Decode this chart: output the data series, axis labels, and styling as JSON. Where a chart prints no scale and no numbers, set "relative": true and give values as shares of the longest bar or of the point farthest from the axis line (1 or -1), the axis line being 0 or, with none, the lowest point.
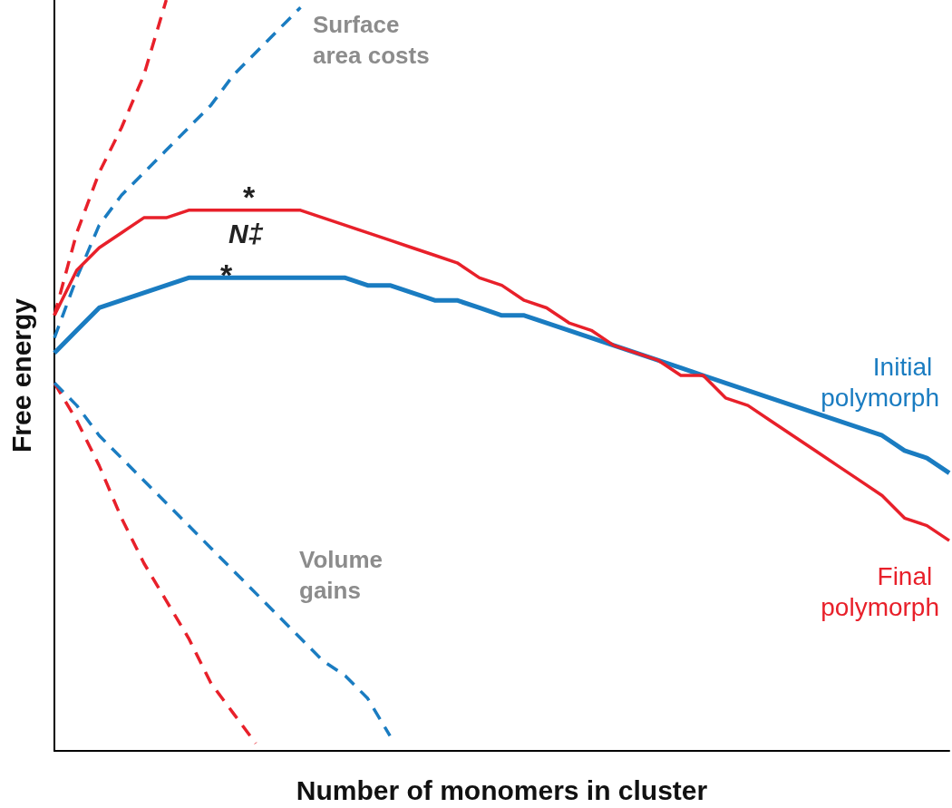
{
  "chart_data": {
    "type": "line",
    "relative": true,
    "xlabel": "Number of monomers in cluster",
    "ylabel": "Free energy",
    "categories": [
      null,
      null,
      null,
      null,
      null,
      null,
      null,
      null,
      null,
      null,
      null,
      null,
      null,
      null,
      null,
      null,
      null,
      null,
      null,
      null,
      null,
      null,
      null,
      null,
      null,
      null,
      null,
      null,
      null,
      null,
      null,
      null,
      null,
      null,
      null,
      null,
      null,
      null,
      null,
      null,
      null
    ],
    "series": [
      {
        "name": "Initial polymorph",
        "color": "#1a7cc1",
        "values": [
          0.53,
          0.56,
          0.59,
          0.6,
          0.61,
          0.62,
          0.63,
          0.63,
          0.63,
          0.63,
          0.63,
          0.63,
          0.63,
          0.63,
          0.62,
          0.62,
          0.61,
          0.6,
          0.6,
          0.59,
          0.58,
          0.58,
          0.57,
          0.56,
          0.55,
          0.54,
          0.53,
          0.52,
          0.51,
          0.5,
          0.49,
          0.48,
          0.47,
          0.46,
          0.45,
          0.44,
          0.43,
          0.42,
          0.4,
          0.39,
          0.37
        ]
      },
      {
        "name": "Final polymorph",
        "color": "#e8202a",
        "values": [
          0.58,
          0.64,
          0.67,
          0.69,
          0.71,
          0.71,
          0.72,
          0.72,
          0.72,
          0.72,
          0.72,
          0.72,
          0.71,
          0.7,
          0.69,
          0.68,
          0.67,
          0.66,
          0.65,
          0.63,
          0.62,
          0.6,
          0.59,
          0.57,
          0.56,
          0.54,
          0.53,
          0.52,
          0.5,
          0.5,
          0.47,
          0.46,
          0.44,
          0.42,
          0.4,
          0.38,
          0.36,
          0.34,
          0.31,
          0.3,
          0.28
        ]
      },
      {
        "color": "#e8202a",
        "line_style": "dashed",
        "values": [
          0.58,
          0.69,
          0.77,
          0.83,
          0.9,
          1.0,
          null,
          null,
          null,
          null,
          null,
          null,
          null,
          null,
          null,
          null,
          null,
          null,
          null,
          null,
          null,
          null,
          null,
          null,
          null,
          null,
          null,
          null,
          null,
          null,
          null,
          null,
          null,
          null,
          null,
          null,
          null,
          null,
          null,
          null,
          null
        ]
      },
      {
        "color": "#1a7cc1",
        "line_style": "dashed",
        "values": [
          0.55,
          0.63,
          0.7,
          0.74,
          0.77,
          0.8,
          0.83,
          0.86,
          0.9,
          0.93,
          0.96,
          0.99,
          null,
          null,
          null,
          null,
          null,
          null,
          null,
          null,
          null,
          null,
          null,
          null,
          null,
          null,
          null,
          null,
          null,
          null,
          null,
          null,
          null,
          null,
          null,
          null,
          null,
          null,
          null,
          null,
          null
        ]
      },
      {
        "color": "#e8202a",
        "line_style": "dashed",
        "values": [
          0.49,
          0.44,
          0.38,
          0.31,
          0.25,
          0.2,
          0.15,
          0.09,
          0.05,
          0.01,
          null,
          null,
          null,
          null,
          null,
          null,
          null,
          null,
          null,
          null,
          null,
          null,
          null,
          null,
          null,
          null,
          null,
          null,
          null,
          null,
          null,
          null,
          null,
          null,
          null,
          null,
          null,
          null,
          null,
          null,
          null
        ]
      },
      {
        "color": "#1a7cc1",
        "line_style": "dashed",
        "values": [
          0.49,
          0.46,
          0.42,
          0.39,
          0.36,
          0.33,
          0.3,
          0.27,
          0.24,
          0.21,
          0.18,
          0.15,
          0.12,
          0.1,
          0.07,
          0.02,
          null,
          null,
          null,
          null,
          null,
          null,
          null,
          null,
          null,
          null,
          null,
          null,
          null,
          null,
          null,
          null,
          null,
          null,
          null,
          null,
          null,
          null,
          null,
          null,
          null
        ]
      }
    ],
    "annotations": [
      "Surface area costs",
      "Volume gains",
      "N‡",
      "*",
      "*"
    ],
    "grid": false,
    "legend": false,
    "marker": "none",
    "line_style": "solid"
  }
}
